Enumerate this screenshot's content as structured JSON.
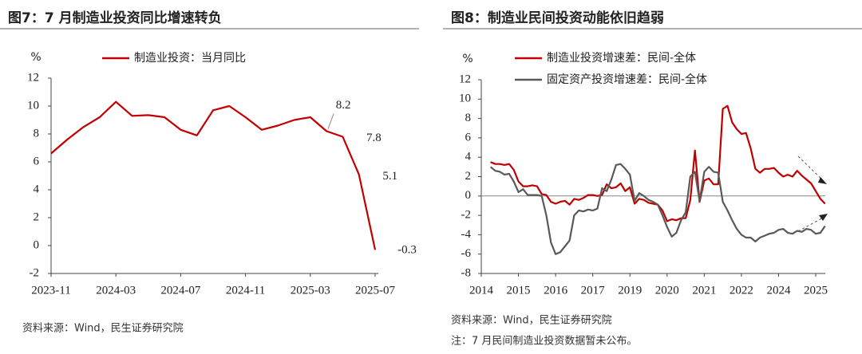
{
  "chart_data": [
    {
      "type": "line",
      "title": "图7：7 月制造业投资同比增速转负",
      "ylabel": "%",
      "categories": [
        "2023-11",
        null,
        null,
        null,
        "2024-03",
        null,
        null,
        null,
        "2024-07",
        null,
        null,
        null,
        "2024-11",
        null,
        null,
        null,
        "2025-03",
        null,
        null,
        null,
        "2025-07"
      ],
      "series": [
        {
          "name": "制造业投资：当月同比",
          "color": "#c00000",
          "values": [
            6.6,
            7.6,
            8.5,
            9.2,
            10.3,
            9.3,
            9.35,
            9.2,
            8.3,
            7.9,
            9.7,
            10.0,
            9.2,
            8.3,
            8.6,
            9.0,
            9.2,
            8.2,
            7.8,
            5.1,
            -0.3
          ],
          "value_labels": [
            null,
            null,
            null,
            null,
            null,
            null,
            null,
            null,
            null,
            null,
            null,
            null,
            null,
            null,
            null,
            null,
            null,
            "8.2",
            "7.8",
            "5.1",
            "-0.3"
          ]
        }
      ],
      "ylim": [
        -2,
        12
      ],
      "yticks": [
        -2,
        0,
        2,
        4,
        6,
        8,
        10,
        12
      ],
      "legend": "top",
      "source": "资料来源：Wind，民生证券研究院"
    },
    {
      "type": "line",
      "title": "图8：制造业民间投资动能依旧趋弱",
      "ylabel": "%",
      "categories": [
        "2014",
        null,
        null,
        null,
        null,
        null,
        null,
        null,
        "2015",
        null,
        null,
        null,
        null,
        null,
        null,
        null,
        "2016",
        null,
        null,
        null,
        null,
        null,
        null,
        null,
        "2017",
        null,
        null,
        null,
        null,
        null,
        null,
        null,
        "2019",
        null,
        null,
        null,
        null,
        null,
        null,
        null,
        "2020",
        null,
        null,
        null,
        null,
        null,
        null,
        null,
        "2021",
        null,
        null,
        null,
        null,
        null,
        null,
        null,
        "2022",
        null,
        null,
        null,
        null,
        null,
        null,
        null,
        "2024",
        null,
        null,
        null,
        null,
        null,
        null,
        null,
        "2025",
        null,
        null
      ],
      "series": [
        {
          "name": "制造业投资增速差：民间-全体",
          "color": "#c00000",
          "values": [
            null,
            null,
            3.5,
            3.3,
            3.3,
            3.2,
            3.3,
            2.7,
            1.5,
            1.0,
            1.0,
            1.1,
            1.0,
            0.2,
            0.1,
            -0.6,
            -0.8,
            -0.6,
            -0.5,
            -0.9,
            -0.3,
            -0.4,
            -0.2,
            0.1,
            0.1,
            0.0,
            0.1,
            1.2,
            0.8,
            0.9,
            1.3,
            0.5,
            0.9,
            -0.8,
            -0.3,
            -0.4,
            -0.7,
            -0.8,
            -0.9,
            -1.5,
            -2.6,
            -2.4,
            -2.5,
            -2.3,
            -2.3,
            -0.4,
            4.7,
            -0.6,
            1.6,
            1.8,
            1.2,
            1.2,
            9.0,
            9.3,
            7.6,
            6.9,
            6.4,
            6.5,
            4.9,
            2.8,
            2.4,
            2.8,
            2.8,
            2.9,
            2.4,
            2.0,
            2.2,
            2.0,
            2.6,
            2.1,
            1.7,
            1.3,
            0.5,
            -0.3,
            -0.8
          ]
        },
        {
          "name": "固定资产投资增速差：民间-全体",
          "color": "#595959",
          "values": [
            null,
            null,
            3.0,
            2.6,
            2.5,
            2.2,
            2.3,
            1.5,
            0.4,
            0.7,
            0.1,
            0.1,
            0.1,
            0.0,
            -2.0,
            -4.8,
            -6.0,
            -5.8,
            -5.2,
            -4.6,
            -2.0,
            -1.5,
            -1.6,
            -1.4,
            -1.5,
            -1.3,
            0.8,
            0.5,
            1.7,
            3.2,
            3.3,
            2.8,
            2.2,
            -0.5,
            0.3,
            0.0,
            -0.4,
            -0.6,
            -0.9,
            -2.0,
            -3.2,
            -4.2,
            -3.8,
            -2.5,
            -1.7,
            2.0,
            2.5,
            -0.5,
            2.5,
            3.0,
            2.5,
            2.4,
            -0.6,
            -1.5,
            -2.5,
            -3.4,
            -4.0,
            -4.3,
            -4.3,
            -4.7,
            -4.3,
            -4.1,
            -3.9,
            -3.8,
            -3.5,
            -3.4,
            -3.8,
            -3.9,
            -3.6,
            -3.7,
            -3.4,
            -3.5,
            -3.9,
            -3.8,
            -3.1
          ]
        }
      ],
      "ylim": [
        -8,
        12
      ],
      "yticks": [
        -8,
        -6,
        -4,
        -2,
        0,
        2,
        4,
        6,
        8,
        10,
        12
      ],
      "legend": "top-left",
      "zero_line": true,
      "source": "资料来源：Wind，民生证券研究院",
      "note": "注：7 月民间制造业投资数据暂未公布。"
    }
  ]
}
